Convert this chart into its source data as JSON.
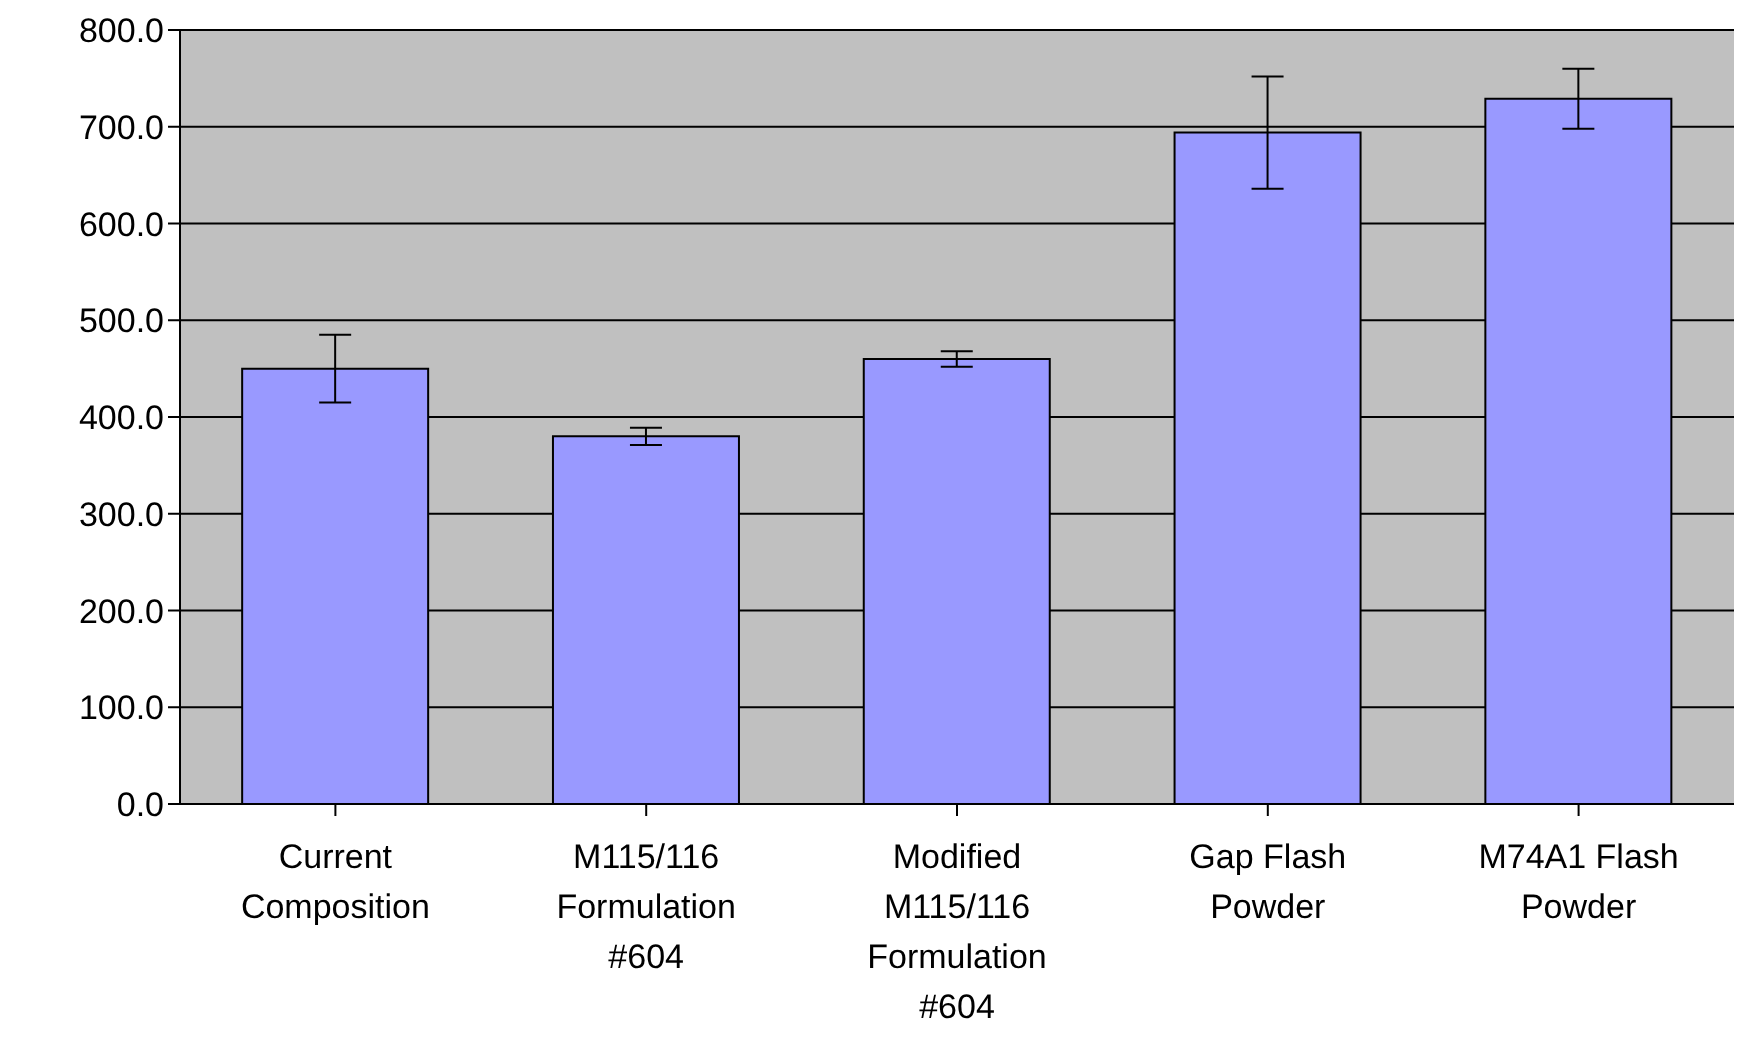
{
  "chart_data": {
    "type": "bar",
    "categories": [
      "Current Composition",
      "M115/116 Formulation #604",
      "Modified M115/116 Formulation #604",
      "Gap Flash Powder",
      "M74A1 Flash Powder"
    ],
    "values": [
      450,
      380,
      460,
      694,
      729
    ],
    "errors": [
      35,
      9,
      8,
      58,
      31
    ],
    "color": "#9999ff",
    "ylim": [
      0,
      800
    ],
    "yticks": [
      {
        "value": 0,
        "label": "0.0"
      },
      {
        "value": 100,
        "label": "100.0"
      },
      {
        "value": 200,
        "label": "200.0"
      },
      {
        "value": 300,
        "label": "300.0"
      },
      {
        "value": 400,
        "label": "400.0"
      },
      {
        "value": 500,
        "label": "500.0"
      },
      {
        "value": 600,
        "label": "600.0"
      },
      {
        "value": 700,
        "label": "700.0"
      },
      {
        "value": 800,
        "label": "800.0"
      }
    ],
    "grid": "y"
  }
}
